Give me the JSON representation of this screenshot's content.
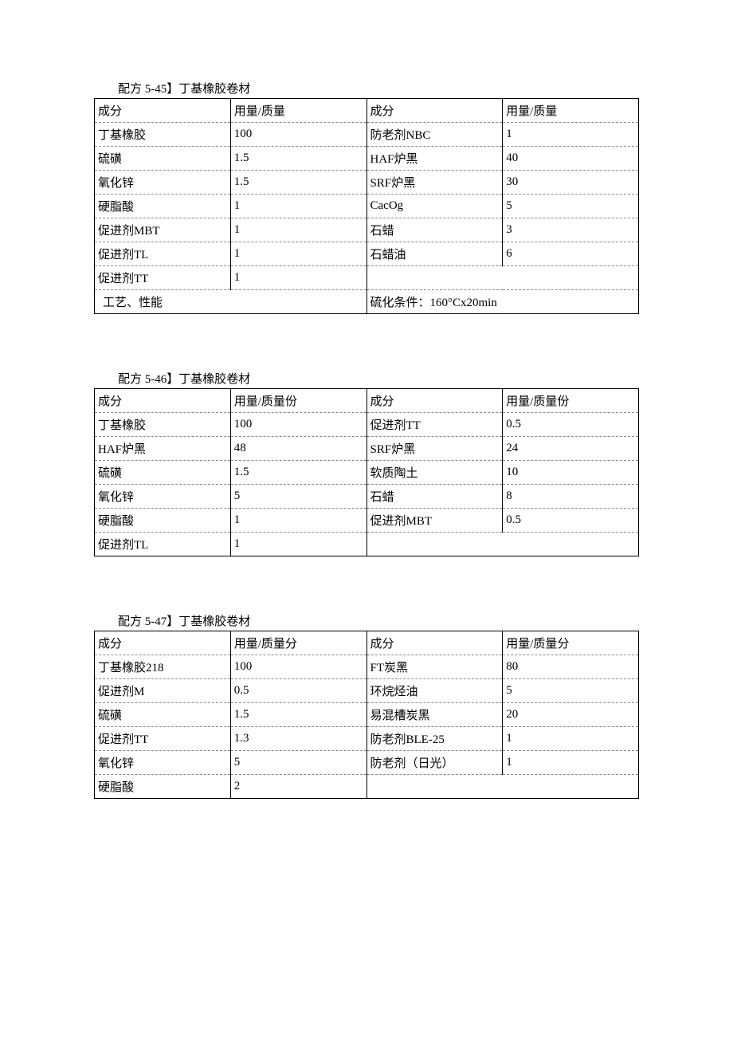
{
  "tables": [
    {
      "title": "配方 5-45】丁基橡胶卷材",
      "headers": [
        "成分",
        "用量/质量",
        "成分",
        "用量/质量"
      ],
      "rows": [
        [
          "丁基橡胶",
          "100",
          "防老剂NBC",
          "1"
        ],
        [
          "硫磺",
          "1.5",
          "HAF炉黑",
          "40"
        ],
        [
          "氧化锌",
          "1.5",
          "SRF炉黑",
          "30"
        ],
        [
          "硬脂酸",
          "1",
          "CacOg",
          "5"
        ],
        [
          "促进剂MBT",
          "1",
          "石蜡",
          "3"
        ],
        [
          "促进剂TL",
          "1",
          "石蜡油",
          "6"
        ],
        [
          "促进剂TT",
          "1",
          "",
          ""
        ]
      ],
      "footer": [
        "工艺、性能",
        "硫化条件：160°Cx20min"
      ]
    },
    {
      "title": "配方 5-46】丁基橡胶卷材",
      "headers": [
        "成分",
        "用量/质量份",
        "成分",
        "用量/质量份"
      ],
      "rows": [
        [
          "丁基橡胶",
          "100",
          "促进剂TT",
          "0.5"
        ],
        [
          "HAF炉黑",
          "48",
          "SRF炉黑",
          "24"
        ],
        [
          "硫磺",
          "1.5",
          "软质陶土",
          "10"
        ],
        [
          "氧化锌",
          "5",
          "石蜡",
          "8"
        ],
        [
          "硬脂酸",
          "1",
          "促进剂MBT",
          "0.5"
        ],
        [
          "促进剂TL",
          "1",
          "",
          ""
        ]
      ],
      "footer": null
    },
    {
      "title": "配方 5-47】丁基橡胶卷材",
      "headers": [
        "成分",
        "用量/质量分",
        "成分",
        "用量/质量分"
      ],
      "rows": [
        [
          "丁基橡胶218",
          "100",
          "FT炭黑",
          "80"
        ],
        [
          "促进剂M",
          "0.5",
          "环烷烃油",
          "5"
        ],
        [
          "硫磺",
          "1.5",
          "易混槽炭黑",
          "20"
        ],
        [
          "促进剂TT",
          "1.3",
          "防老剂BLE-25",
          "1"
        ],
        [
          "氧化锌",
          "5",
          "防老剂（日光）",
          "1"
        ],
        [
          "硬脂酸",
          "2",
          "",
          ""
        ]
      ],
      "footer": null
    }
  ]
}
